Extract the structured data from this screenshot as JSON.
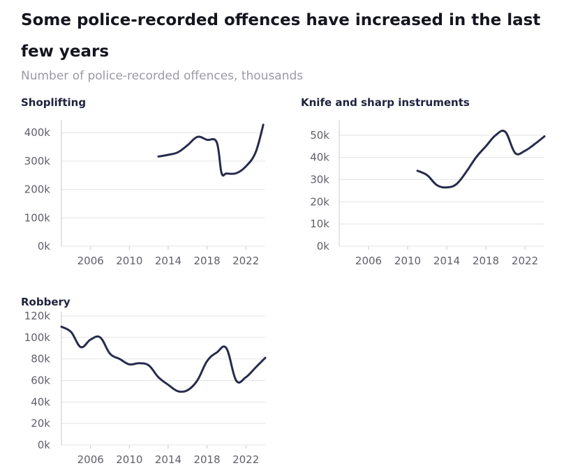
{
  "title": "Some police-recorded offences have increased in the last few years",
  "subtitle": "Number of police-recorded offences, thousands",
  "colors": {
    "line": "#262b4d",
    "grid": "#e4e4e8",
    "title": "#15151f",
    "subtitle": "#9a9aa3"
  },
  "chart_data": [
    {
      "type": "line",
      "title": "Shoplifting",
      "xlim": [
        2003,
        2024
      ],
      "xticks": [
        2006,
        2010,
        2014,
        2018,
        2022
      ],
      "ylim": [
        0,
        430000
      ],
      "yticks": [
        0,
        100000,
        200000,
        300000,
        400000
      ],
      "ytick_labels": [
        "0k",
        "100k",
        "200k",
        "300k",
        "400k"
      ],
      "grid": true,
      "series": [
        {
          "x": [
            2013,
            2014,
            2015,
            2016,
            2017,
            2018,
            2019,
            2019.5,
            2020,
            2021,
            2022,
            2023,
            2023.8
          ],
          "values": [
            316000,
            322000,
            331000,
            356000,
            385000,
            375000,
            366000,
            258000,
            256000,
            257000,
            281000,
            330000,
            428000
          ]
        }
      ]
    },
    {
      "type": "line",
      "title": "Knife and sharp instruments",
      "xlim": [
        2003,
        2024
      ],
      "xticks": [
        2006,
        2010,
        2014,
        2018,
        2022
      ],
      "ylim": [
        0,
        55000
      ],
      "yticks": [
        0,
        10000,
        20000,
        30000,
        40000,
        50000
      ],
      "ytick_labels": [
        "0k",
        "10k",
        "20k",
        "30k",
        "40k",
        "50k"
      ],
      "grid": true,
      "series": [
        {
          "x": [
            2011,
            2012,
            2013,
            2014,
            2015,
            2016,
            2017,
            2018,
            2019,
            2020,
            2021,
            2022,
            2023,
            2024
          ],
          "values": [
            34000,
            32000,
            27500,
            26500,
            28000,
            33500,
            40000,
            45000,
            50000,
            51500,
            42000,
            43000,
            46000,
            49500
          ]
        }
      ]
    },
    {
      "type": "line",
      "title": "Robbery",
      "xlim": [
        2003,
        2024
      ],
      "xticks": [
        2006,
        2010,
        2014,
        2018,
        2022
      ],
      "ylim": [
        0,
        120000
      ],
      "yticks": [
        0,
        20000,
        40000,
        60000,
        80000,
        100000,
        120000
      ],
      "ytick_labels": [
        "0k",
        "20k",
        "40k",
        "60k",
        "80k",
        "100k",
        "120k"
      ],
      "grid": true,
      "series": [
        {
          "x": [
            2003,
            2004,
            2005,
            2006,
            2007,
            2008,
            2009,
            2010,
            2011,
            2012,
            2013,
            2014,
            2015,
            2016,
            2017,
            2018,
            2019,
            2020,
            2021,
            2022,
            2023,
            2024
          ],
          "values": [
            110000,
            105000,
            91000,
            98000,
            100000,
            85000,
            80000,
            75000,
            76000,
            74000,
            63000,
            56000,
            50000,
            51000,
            60000,
            78000,
            86000,
            90000,
            60000,
            63000,
            72000,
            81000
          ]
        }
      ]
    }
  ]
}
